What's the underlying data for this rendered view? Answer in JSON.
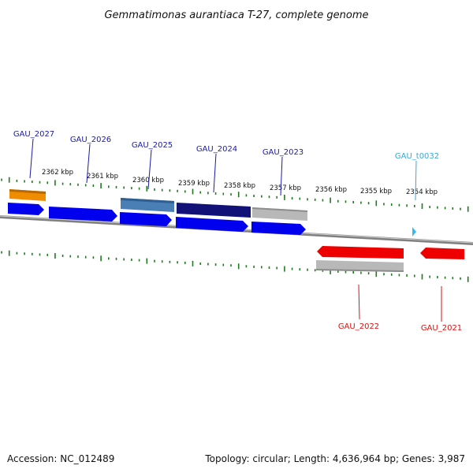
{
  "title": "Gemmatimonas aurantiaca T-27, complete genome",
  "footer": {
    "accession": "Accession: NC_012489",
    "summary": "Topology: circular; Length: 4,636,964 bp; Genes: 3,987"
  },
  "colors": {
    "axis": "#808080",
    "tick": "#1e7a1e",
    "forward_cds": "#0000ee",
    "reverse_cds": "#ee0000",
    "orange_feature": "#f08c00",
    "steelblue_feature": "#4a7fb5",
    "navy_feature": "#111177",
    "gray_feature": "#b8b8b8",
    "trna": "#33bbee",
    "label_forward": "#1a1aaa",
    "label_trna": "#33aadd",
    "label_reverse": "#dd1111"
  },
  "tick_labels": [
    "2362 kbp",
    "2361 kbp",
    "2360 kbp",
    "2359 kbp",
    "2358 kbp",
    "2357 kbp",
    "2356 kbp",
    "2355 kbp",
    "2354 kbp"
  ],
  "gene_labels": [
    {
      "name": "GAU_2027",
      "strand": "forward"
    },
    {
      "name": "GAU_2026",
      "strand": "forward"
    },
    {
      "name": "GAU_2025",
      "strand": "forward"
    },
    {
      "name": "GAU_2024",
      "strand": "forward"
    },
    {
      "name": "GAU_2023",
      "strand": "forward"
    },
    {
      "name": "GAU_t0032",
      "strand": "trna"
    },
    {
      "name": "GAU_2022",
      "strand": "reverse"
    },
    {
      "name": "GAU_2021",
      "strand": "reverse"
    }
  ]
}
